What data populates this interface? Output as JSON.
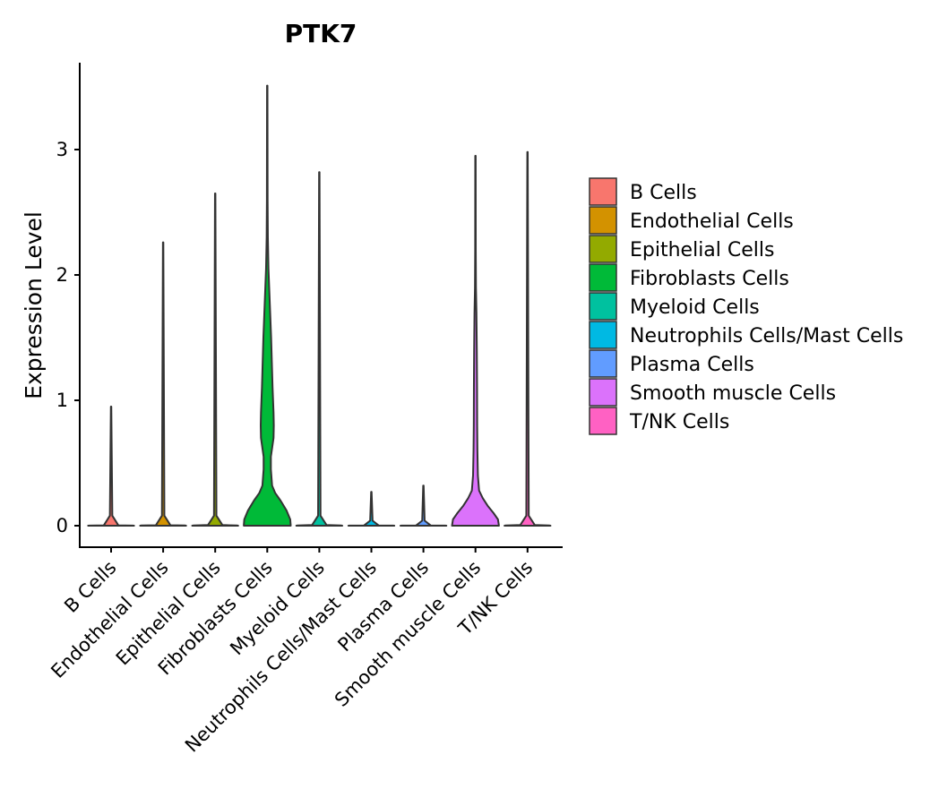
{
  "chart_data": {
    "type": "violin",
    "title": "PTK7",
    "xlabel": "",
    "ylabel": "Expression Level",
    "ylim": [
      -0.17,
      3.7
    ],
    "yticks": [
      0,
      1,
      2,
      3
    ],
    "ytick_labels": [
      "0",
      "1",
      "2",
      "3"
    ],
    "grid": false,
    "legend_position": "right",
    "categories": [
      "B Cells",
      "Endothelial Cells",
      "Epithelial Cells",
      "Fibroblasts Cells",
      "Myeloid Cells",
      "Neutrophils Cells/Mast Cells",
      "Plasma Cells",
      "Smooth muscle Cells",
      "T/NK Cells"
    ],
    "colors": [
      "#F8766D",
      "#D39200",
      "#93AA00",
      "#00BA38",
      "#00C19F",
      "#00B9E3",
      "#619CFF",
      "#DB72FB",
      "#FF61C3"
    ],
    "series": [
      {
        "name": "B Cells",
        "max": 0.95,
        "profile": [
          [
            0,
            0.95
          ],
          [
            0.001,
            0.9
          ],
          [
            0.003,
            0.3
          ],
          [
            0.08,
            0.05
          ],
          [
            0.95,
            0.008
          ]
        ]
      },
      {
        "name": "Endothelial Cells",
        "max": 2.26,
        "profile": [
          [
            0,
            0.95
          ],
          [
            0.002,
            0.9
          ],
          [
            0.004,
            0.3
          ],
          [
            0.08,
            0.05
          ],
          [
            2.26,
            0.008
          ]
        ]
      },
      {
        "name": "Epithelial Cells",
        "max": 2.65,
        "profile": [
          [
            0,
            0.95
          ],
          [
            0.002,
            0.9
          ],
          [
            0.005,
            0.3
          ],
          [
            0.08,
            0.05
          ],
          [
            2.65,
            0.008
          ]
        ]
      },
      {
        "name": "Fibroblasts Cells",
        "max": 3.51,
        "profile": [
          [
            0,
            0.97
          ],
          [
            0.05,
            0.95
          ],
          [
            0.12,
            0.8
          ],
          [
            0.2,
            0.55
          ],
          [
            0.26,
            0.33
          ],
          [
            0.32,
            0.2
          ],
          [
            0.45,
            0.15
          ],
          [
            0.55,
            0.15
          ],
          [
            0.7,
            0.26
          ],
          [
            0.8,
            0.27
          ],
          [
            0.9,
            0.26
          ],
          [
            1.1,
            0.22
          ],
          [
            1.3,
            0.19
          ],
          [
            1.5,
            0.16
          ],
          [
            1.7,
            0.12
          ],
          [
            1.9,
            0.08
          ],
          [
            2.05,
            0.05
          ],
          [
            2.3,
            0.025
          ],
          [
            2.6,
            0.015
          ],
          [
            3.51,
            0.008
          ]
        ]
      },
      {
        "name": "Myeloid Cells",
        "max": 2.82,
        "profile": [
          [
            0,
            0.95
          ],
          [
            0.002,
            0.9
          ],
          [
            0.005,
            0.3
          ],
          [
            0.08,
            0.05
          ],
          [
            2.82,
            0.008
          ]
        ]
      },
      {
        "name": "Neutrophils Cells/Mast Cells",
        "max": 0.27,
        "profile": [
          [
            0,
            0.95
          ],
          [
            0.001,
            0.9
          ],
          [
            0.002,
            0.3
          ],
          [
            0.04,
            0.05
          ],
          [
            0.27,
            0.008
          ]
        ]
      },
      {
        "name": "Plasma Cells",
        "max": 0.32,
        "profile": [
          [
            0,
            0.95
          ],
          [
            0.001,
            0.9
          ],
          [
            0.002,
            0.3
          ],
          [
            0.04,
            0.05
          ],
          [
            0.32,
            0.008
          ]
        ]
      },
      {
        "name": "Smooth muscle Cells",
        "max": 2.95,
        "profile": [
          [
            0,
            0.97
          ],
          [
            0.05,
            0.93
          ],
          [
            0.1,
            0.75
          ],
          [
            0.16,
            0.5
          ],
          [
            0.22,
            0.3
          ],
          [
            0.28,
            0.15
          ],
          [
            0.4,
            0.1
          ],
          [
            0.6,
            0.08
          ],
          [
            0.8,
            0.07
          ],
          [
            1.1,
            0.065
          ],
          [
            1.4,
            0.055
          ],
          [
            1.7,
            0.04
          ],
          [
            1.9,
            0.02
          ],
          [
            2.2,
            0.012
          ],
          [
            2.95,
            0.008
          ]
        ]
      },
      {
        "name": "T/NK Cells",
        "max": 2.98,
        "profile": [
          [
            0,
            0.95
          ],
          [
            0.002,
            0.9
          ],
          [
            0.005,
            0.3
          ],
          [
            0.08,
            0.05
          ],
          [
            2.98,
            0.008
          ]
        ]
      }
    ]
  }
}
